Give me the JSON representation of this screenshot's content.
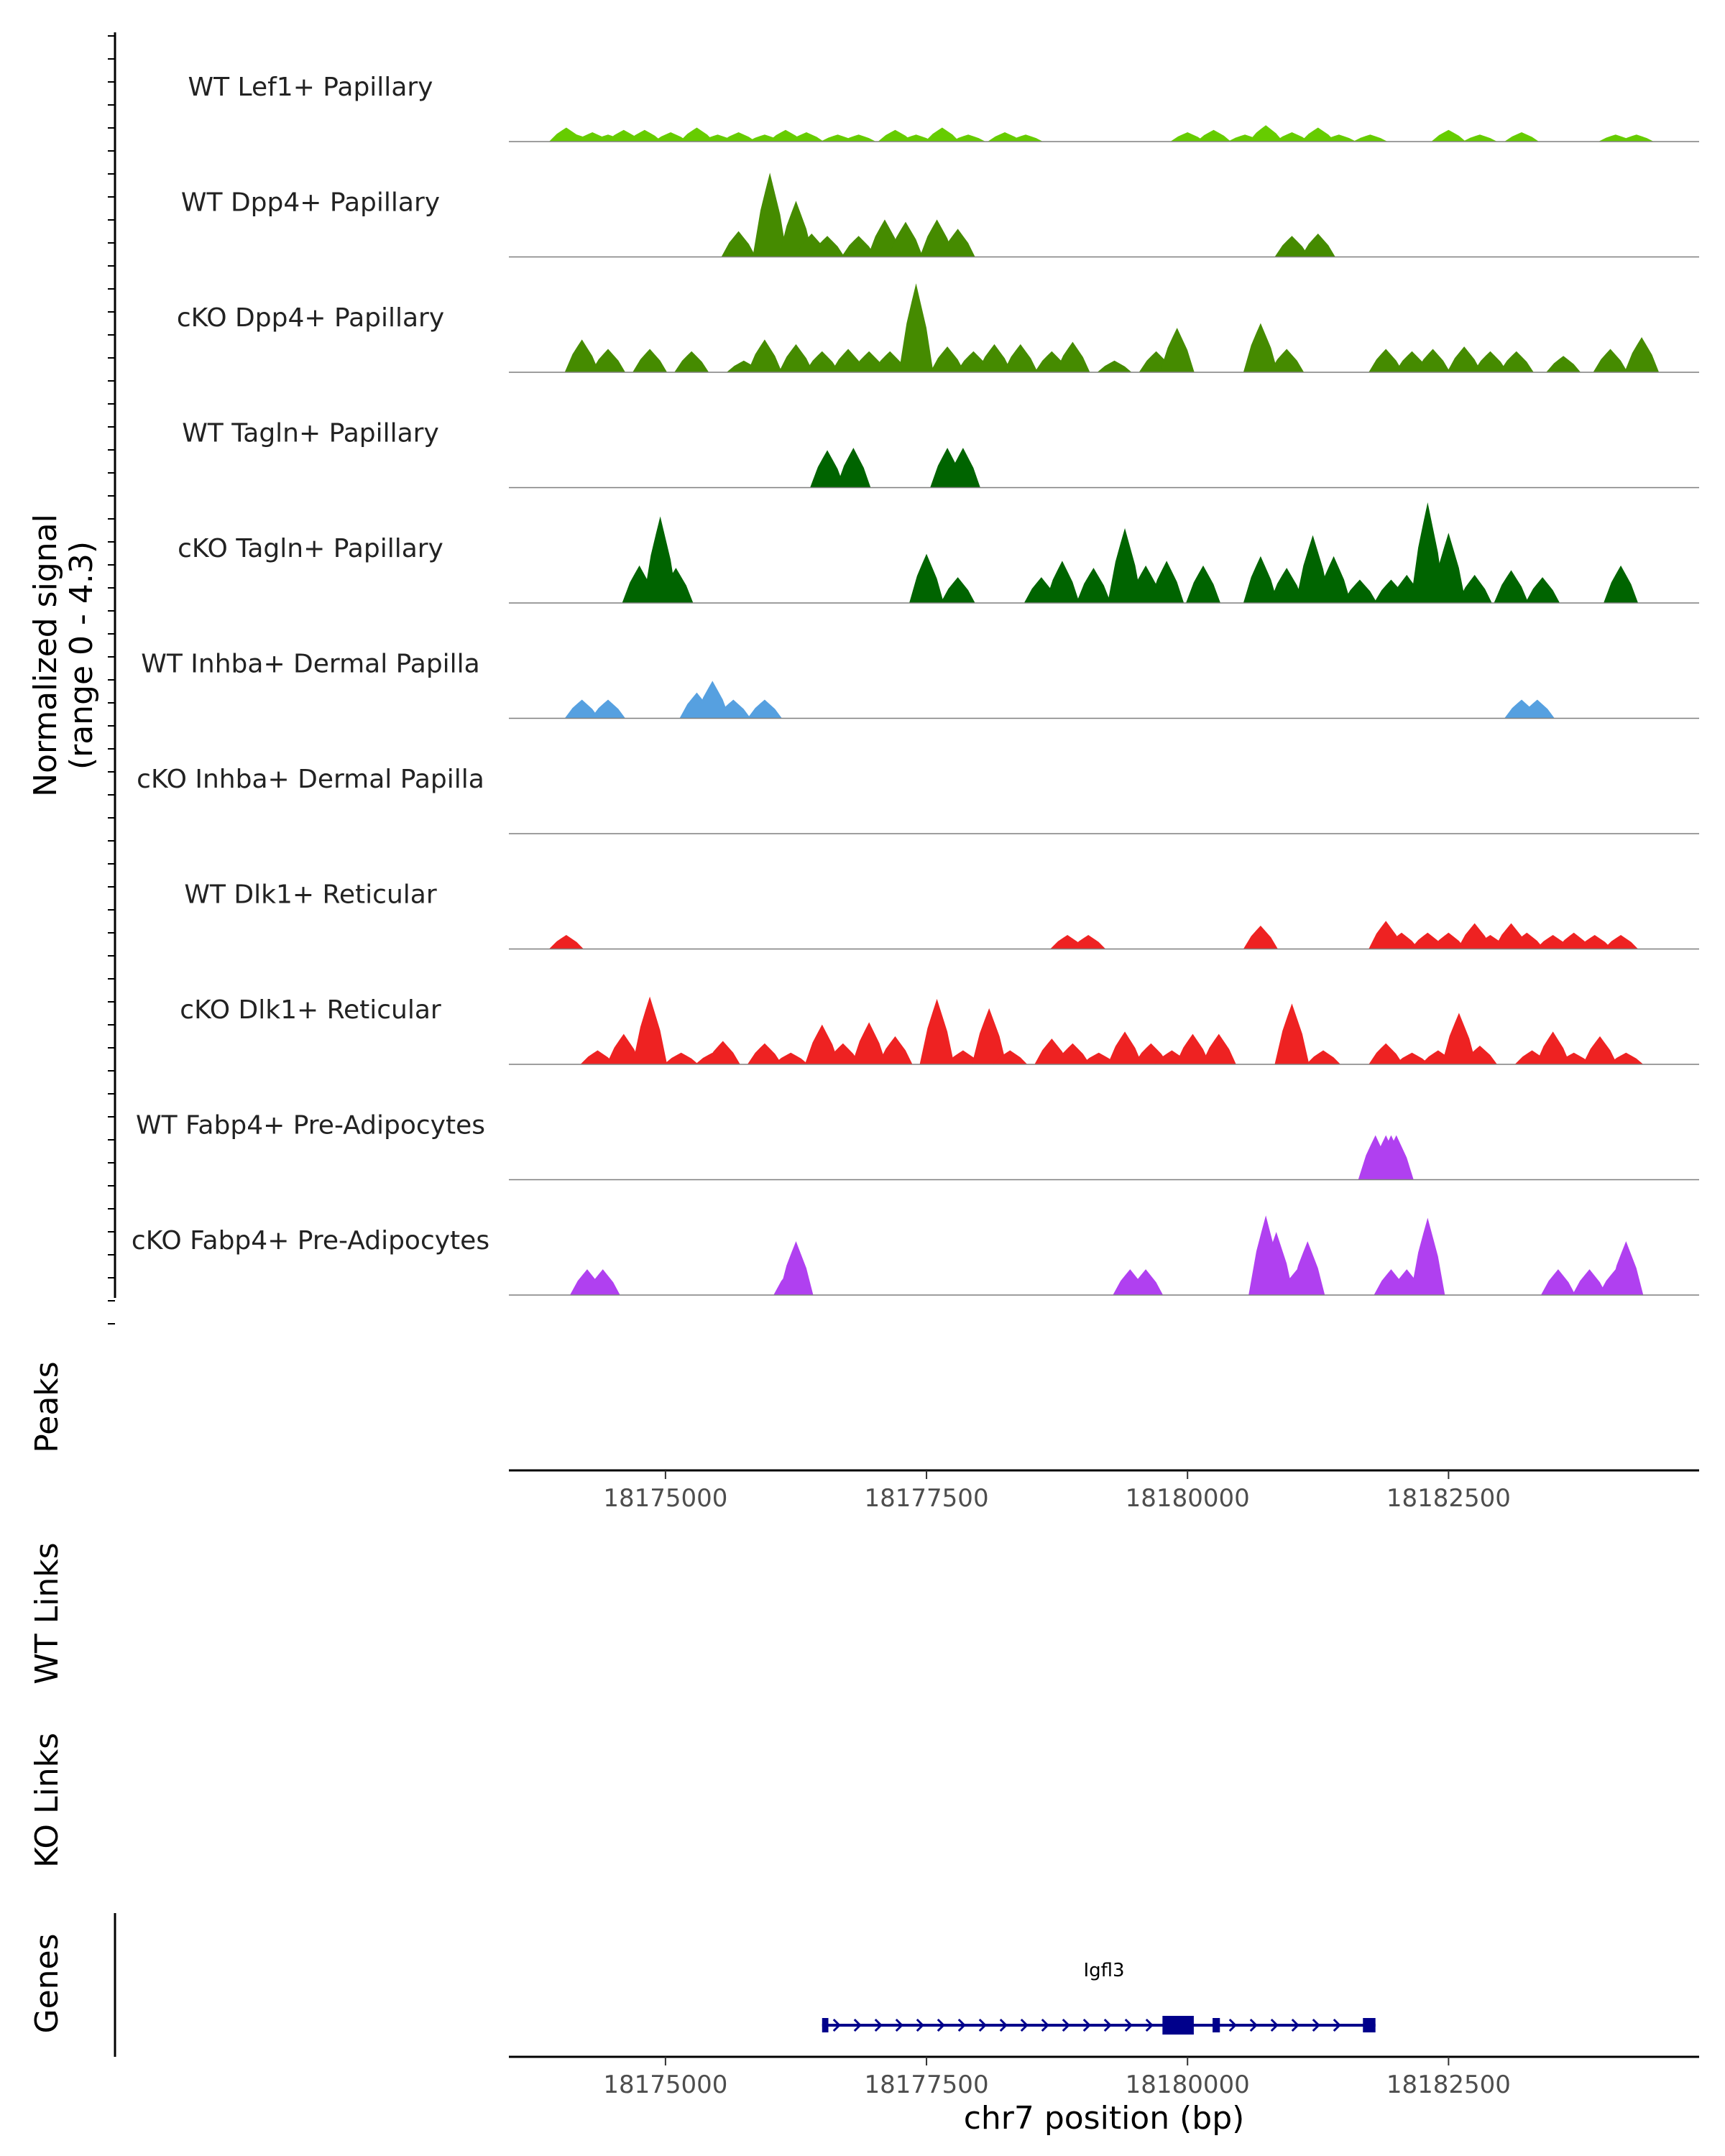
{
  "chart_data": {
    "type": "area",
    "title": "",
    "chromosome": "chr7",
    "xlabel": "chr7 position (bp)",
    "xlim": [
      18173500,
      18184900
    ],
    "x_ticks": [
      18175000,
      18177500,
      18180000,
      18182500
    ],
    "x_tick_labels": [
      "18175000",
      "18177500",
      "18180000",
      "18182500"
    ],
    "signal_axis_label": [
      "Normalized signal",
      "(range 0 - 4.3)"
    ],
    "ylim": [
      0,
      4.3
    ],
    "panel_labels": {
      "peaks": "Peaks",
      "wt_links": "WT Links",
      "ko_links": "KO Links",
      "genes": "Genes"
    },
    "gene": {
      "name": "Igfl3",
      "start": 18176500,
      "end": 18181800,
      "strand": "+",
      "color": "#00008B",
      "exons": [
        [
          18176500,
          18176560
        ],
        [
          18179760,
          18180060
        ],
        [
          18180240,
          18180310
        ],
        [
          18181680,
          18181800
        ]
      ]
    },
    "series": [
      {
        "name": "WT Lef1+ Papillary",
        "color": "#66CC00",
        "peaks": [
          [
            18174050,
            0.6
          ],
          [
            18174150,
            0.3
          ],
          [
            18174300,
            0.4
          ],
          [
            18174450,
            0.3
          ],
          [
            18174600,
            0.5
          ],
          [
            18174800,
            0.5
          ],
          [
            18175050,
            0.4
          ],
          [
            18175300,
            0.6
          ],
          [
            18175500,
            0.3
          ],
          [
            18175700,
            0.4
          ],
          [
            18175950,
            0.3
          ],
          [
            18176150,
            0.5
          ],
          [
            18176350,
            0.4
          ],
          [
            18176650,
            0.3
          ],
          [
            18176850,
            0.3
          ],
          [
            18177200,
            0.5
          ],
          [
            18177400,
            0.3
          ],
          [
            18177650,
            0.6
          ],
          [
            18177900,
            0.3
          ],
          [
            18178250,
            0.4
          ],
          [
            18178450,
            0.3
          ],
          [
            18180000,
            0.4
          ],
          [
            18180250,
            0.5
          ],
          [
            18180550,
            0.3
          ],
          [
            18180750,
            0.7
          ],
          [
            18181000,
            0.4
          ],
          [
            18181250,
            0.6
          ],
          [
            18181450,
            0.3
          ],
          [
            18181750,
            0.3
          ],
          [
            18182500,
            0.5
          ],
          [
            18182800,
            0.3
          ],
          [
            18183200,
            0.4
          ],
          [
            18184100,
            0.3
          ],
          [
            18184300,
            0.3
          ]
        ]
      },
      {
        "name": "WT Dpp4+ Papillary",
        "color": "#458B00",
        "peaks": [
          [
            18175700,
            1.1
          ],
          [
            18176000,
            3.6
          ],
          [
            18176250,
            2.4
          ],
          [
            18176400,
            1.0
          ],
          [
            18176550,
            0.9
          ],
          [
            18176850,
            0.9
          ],
          [
            18177100,
            1.6
          ],
          [
            18177300,
            1.5
          ],
          [
            18177600,
            1.6
          ],
          [
            18177800,
            1.2
          ],
          [
            18181000,
            0.9
          ],
          [
            18181250,
            1.0
          ]
        ]
      },
      {
        "name": "cKO Dpp4+ Papillary",
        "color": "#458B00",
        "peaks": [
          [
            18174200,
            1.4
          ],
          [
            18174450,
            1.0
          ],
          [
            18174850,
            1.0
          ],
          [
            18175250,
            0.9
          ],
          [
            18175750,
            0.5
          ],
          [
            18175950,
            1.4
          ],
          [
            18176250,
            1.2
          ],
          [
            18176500,
            0.9
          ],
          [
            18176750,
            1.0
          ],
          [
            18176950,
            0.9
          ],
          [
            18177150,
            0.9
          ],
          [
            18177400,
            3.8
          ],
          [
            18177700,
            1.1
          ],
          [
            18177950,
            0.9
          ],
          [
            18178150,
            1.2
          ],
          [
            18178400,
            1.2
          ],
          [
            18178700,
            0.9
          ],
          [
            18178900,
            1.3
          ],
          [
            18179300,
            0.5
          ],
          [
            18179700,
            0.9
          ],
          [
            18179900,
            1.9
          ],
          [
            18180700,
            2.1
          ],
          [
            18180950,
            1.0
          ],
          [
            18181900,
            1.0
          ],
          [
            18182150,
            0.9
          ],
          [
            18182350,
            1.0
          ],
          [
            18182650,
            1.1
          ],
          [
            18182900,
            0.9
          ],
          [
            18183150,
            0.9
          ],
          [
            18183600,
            0.7
          ],
          [
            18184050,
            1.0
          ],
          [
            18184350,
            1.5
          ]
        ]
      },
      {
        "name": "WT Tagln+ Papillary",
        "color": "#006400",
        "peaks": [
          [
            18176550,
            1.6
          ],
          [
            18176800,
            1.7
          ],
          [
            18177700,
            1.7
          ],
          [
            18177850,
            1.7
          ]
        ]
      },
      {
        "name": "cKO Tagln+ Papillary",
        "color": "#006400",
        "peaks": [
          [
            18174750,
            1.6
          ],
          [
            18174950,
            3.7
          ],
          [
            18175100,
            1.5
          ],
          [
            18177500,
            2.1
          ],
          [
            18177800,
            1.1
          ],
          [
            18178600,
            1.1
          ],
          [
            18178800,
            1.8
          ],
          [
            18179100,
            1.5
          ],
          [
            18179400,
            3.2
          ],
          [
            18179600,
            1.6
          ],
          [
            18179800,
            1.8
          ],
          [
            18180150,
            1.6
          ],
          [
            18180700,
            2.0
          ],
          [
            18180950,
            1.5
          ],
          [
            18181200,
            2.9
          ],
          [
            18181400,
            2.0
          ],
          [
            18181650,
            1.0
          ],
          [
            18181950,
            1.0
          ],
          [
            18182100,
            1.2
          ],
          [
            18182300,
            4.3
          ],
          [
            18182500,
            3.0
          ],
          [
            18182750,
            1.2
          ],
          [
            18183100,
            1.4
          ],
          [
            18183400,
            1.1
          ],
          [
            18184150,
            1.6
          ]
        ]
      },
      {
        "name": "WT Inhba+ Dermal Papilla",
        "color": "#56A0E0",
        "peaks": [
          [
            18174200,
            0.8
          ],
          [
            18174450,
            0.8
          ],
          [
            18175300,
            1.1
          ],
          [
            18175450,
            1.6
          ],
          [
            18175650,
            0.8
          ],
          [
            18175950,
            0.8
          ],
          [
            18183200,
            0.8
          ],
          [
            18183350,
            0.8
          ]
        ]
      },
      {
        "name": "cKO Inhba+ Dermal Papilla",
        "color": "#56A0E0",
        "peaks": []
      },
      {
        "name": "WT Dlk1+ Reticular",
        "color": "#EE2222",
        "peaks": [
          [
            18174050,
            0.6
          ],
          [
            18178850,
            0.6
          ],
          [
            18179050,
            0.6
          ],
          [
            18180700,
            1.0
          ],
          [
            18181900,
            1.2
          ],
          [
            18182050,
            0.7
          ],
          [
            18182300,
            0.7
          ],
          [
            18182500,
            0.7
          ],
          [
            18182750,
            1.1
          ],
          [
            18182900,
            0.6
          ],
          [
            18183100,
            1.1
          ],
          [
            18183250,
            0.7
          ],
          [
            18183500,
            0.6
          ],
          [
            18183700,
            0.7
          ],
          [
            18183900,
            0.6
          ],
          [
            18184150,
            0.6
          ]
        ]
      },
      {
        "name": "cKO Dlk1+ Reticular",
        "color": "#EE2222",
        "peaks": [
          [
            18174350,
            0.6
          ],
          [
            18174600,
            1.3
          ],
          [
            18174850,
            2.9
          ],
          [
            18175150,
            0.5
          ],
          [
            18175450,
            0.5
          ],
          [
            18175550,
            1.0
          ],
          [
            18175950,
            0.9
          ],
          [
            18176200,
            0.5
          ],
          [
            18176500,
            1.7
          ],
          [
            18176700,
            0.9
          ],
          [
            18176950,
            1.8
          ],
          [
            18177200,
            1.2
          ],
          [
            18177600,
            2.8
          ],
          [
            18177850,
            0.6
          ],
          [
            18178100,
            2.4
          ],
          [
            18178300,
            0.6
          ],
          [
            18178700,
            1.1
          ],
          [
            18178900,
            0.9
          ],
          [
            18179150,
            0.5
          ],
          [
            18179400,
            1.4
          ],
          [
            18179650,
            0.9
          ],
          [
            18179850,
            0.6
          ],
          [
            18180050,
            1.3
          ],
          [
            18180300,
            1.3
          ],
          [
            18181000,
            2.6
          ],
          [
            18181300,
            0.6
          ],
          [
            18181900,
            0.9
          ],
          [
            18182150,
            0.5
          ],
          [
            18182400,
            0.6
          ],
          [
            18182600,
            2.2
          ],
          [
            18182800,
            0.8
          ],
          [
            18183300,
            0.6
          ],
          [
            18183500,
            1.4
          ],
          [
            18183700,
            0.5
          ],
          [
            18183950,
            1.2
          ],
          [
            18184200,
            0.5
          ]
        ]
      },
      {
        "name": "WT Fabp4+ Pre-Adipocytes",
        "color": "#B040F0",
        "peaks": [
          [
            18181800,
            1.9
          ],
          [
            18181900,
            1.9
          ],
          [
            18181950,
            1.9
          ],
          [
            18182000,
            1.9
          ]
        ]
      },
      {
        "name": "cKO Fabp4+ Pre-Adipocytes",
        "color": "#B040F0",
        "peaks": [
          [
            18174250,
            1.1
          ],
          [
            18174400,
            1.1
          ],
          [
            18176200,
            1.1
          ],
          [
            18176250,
            2.3
          ],
          [
            18179450,
            1.1
          ],
          [
            18179600,
            1.1
          ],
          [
            18180750,
            3.4
          ],
          [
            18180850,
            2.7
          ],
          [
            18181050,
            1.1
          ],
          [
            18181150,
            2.3
          ],
          [
            18181950,
            1.1
          ],
          [
            18182100,
            1.1
          ],
          [
            18182250,
            1.1
          ],
          [
            18182300,
            3.3
          ],
          [
            18183550,
            1.1
          ],
          [
            18183850,
            1.1
          ],
          [
            18184100,
            1.1
          ],
          [
            18184200,
            2.3
          ]
        ]
      }
    ]
  }
}
